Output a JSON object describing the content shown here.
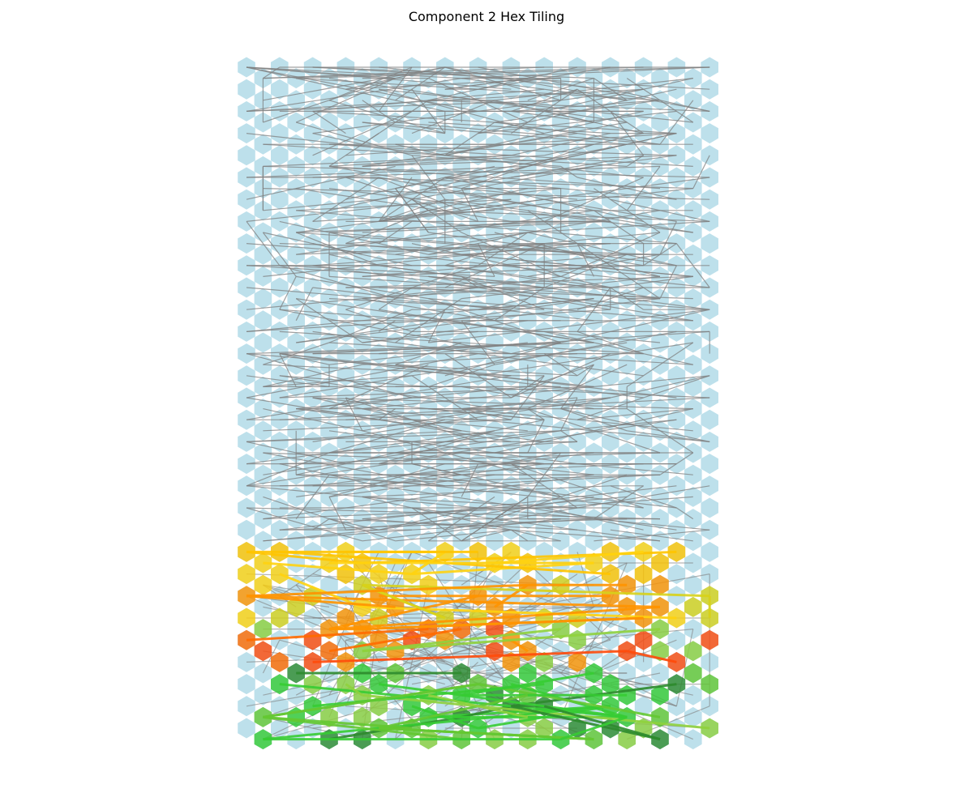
{
  "title": "Component 2 Hex Tiling",
  "colors": {
    "background": "#ffffff",
    "hex_default": "#add8e6",
    "edge_default": "#808080",
    "highlight_palette": [
      "#ffc400",
      "#ffd30f",
      "#d7d219",
      "#ff9300",
      "#ff6a00",
      "#ff4a0a",
      "#8fd13d",
      "#64c832",
      "#36cc33",
      "#2e8b2e"
    ]
  },
  "grid": {
    "columns": 15,
    "rows_even_column": 31,
    "rows_odd_column": 31,
    "odd_column_offset": "half-row down"
  }
}
